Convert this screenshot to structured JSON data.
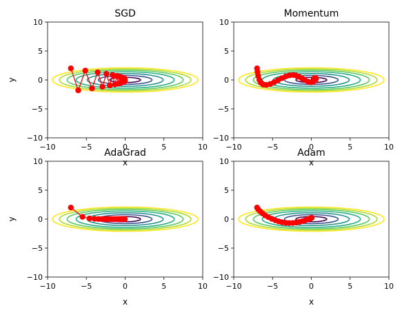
{
  "colors": {
    "path": "#ff0000",
    "center_marker": "#1f77b4",
    "contour_levels": [
      "#440154",
      "#3b528b",
      "#21918c",
      "#27ad81",
      "#5ec962",
      "#aadc32",
      "#fde725"
    ]
  },
  "chart_data": [
    {
      "type": "scatter",
      "title": "SGD",
      "xlabel": "x",
      "ylabel": "y",
      "xlim": [
        -10,
        10
      ],
      "ylim": [
        -10,
        10
      ],
      "xticks": [
        "−10",
        "−5",
        "0",
        "5",
        "10"
      ],
      "yticks": [
        "−10",
        "−5",
        "0",
        "5",
        "10"
      ],
      "contour": {
        "function": "f(x,y) = x^2/20 + y^2",
        "levels": [
          0.2,
          0.6,
          1.2,
          2.0,
          2.8,
          3.6,
          4.4
        ]
      },
      "center": [
        0,
        0
      ],
      "path": [
        [
          -7.0,
          2.0
        ],
        [
          -6.05,
          -1.8
        ],
        [
          -5.14,
          1.62
        ],
        [
          -4.28,
          -1.46
        ],
        [
          -3.54,
          1.31
        ],
        [
          -2.93,
          -1.18
        ],
        [
          -2.42,
          1.06
        ],
        [
          -1.98,
          -0.96
        ],
        [
          -1.62,
          0.86
        ],
        [
          -1.32,
          -0.77
        ],
        [
          -1.07,
          0.7
        ],
        [
          -0.87,
          -0.63
        ],
        [
          -0.7,
          0.56
        ],
        [
          -0.56,
          -0.51
        ],
        [
          -0.45,
          0.46
        ],
        [
          -0.36,
          -0.41
        ],
        [
          -0.29,
          0.37
        ],
        [
          -0.23,
          -0.33
        ],
        [
          -0.18,
          0.3
        ],
        [
          -0.14,
          -0.27
        ],
        [
          -0.11,
          0.24
        ],
        [
          -0.08,
          -0.22
        ],
        [
          -0.06,
          0.2
        ],
        [
          -0.04,
          -0.18
        ]
      ]
    },
    {
      "type": "scatter",
      "title": "Momentum",
      "xlabel": "x",
      "ylabel": "",
      "xlim": [
        -10,
        10
      ],
      "ylim": [
        -10,
        10
      ],
      "xticks": [
        "−10",
        "−5",
        "0",
        "5",
        "10"
      ],
      "yticks": [
        "−10",
        "−5",
        "0",
        "5",
        "10"
      ],
      "contour": {
        "function": "f(x,y) = x^2/20 + y^2",
        "levels": [
          0.2,
          0.6,
          1.2,
          2.0,
          2.8,
          3.6,
          4.4
        ]
      },
      "center": [
        0,
        0
      ],
      "path": [
        [
          -7.0,
          2.0
        ],
        [
          -6.95,
          1.4
        ],
        [
          -6.85,
          0.7
        ],
        [
          -6.7,
          0.0
        ],
        [
          -6.5,
          -0.5
        ],
        [
          -6.2,
          -0.8
        ],
        [
          -5.8,
          -0.85
        ],
        [
          -5.3,
          -0.7
        ],
        [
          -4.8,
          -0.4
        ],
        [
          -4.3,
          -0.05
        ],
        [
          -3.8,
          0.3
        ],
        [
          -3.3,
          0.6
        ],
        [
          -2.8,
          0.8
        ],
        [
          -2.35,
          0.85
        ],
        [
          -1.95,
          0.75
        ],
        [
          -1.6,
          0.55
        ],
        [
          -1.2,
          0.25
        ],
        [
          -0.8,
          -0.05
        ],
        [
          -0.4,
          -0.3
        ],
        [
          -0.05,
          -0.4
        ],
        [
          0.25,
          -0.3
        ],
        [
          0.5,
          -0.05
        ],
        [
          0.6,
          0.2
        ],
        [
          0.55,
          0.35
        ],
        [
          0.4,
          0.3
        ]
      ]
    },
    {
      "type": "scatter",
      "title": "AdaGrad",
      "xlabel": "x",
      "ylabel": "y",
      "xlim": [
        -10,
        10
      ],
      "ylim": [
        -10,
        10
      ],
      "xticks": [
        "−10",
        "−5",
        "0",
        "5",
        "10"
      ],
      "yticks": [
        "−10",
        "−5",
        "0",
        "5",
        "10"
      ],
      "contour": {
        "function": "f(x,y) = x^2/20 + y^2",
        "levels": [
          0.2,
          0.6,
          1.2,
          2.0,
          2.8,
          3.6,
          4.4
        ]
      },
      "center": [
        0,
        0
      ],
      "path": [
        [
          -7.0,
          2.0
        ],
        [
          -5.5,
          0.4
        ],
        [
          -4.6,
          0.13
        ],
        [
          -3.95,
          0.05
        ],
        [
          -3.45,
          0.02
        ],
        [
          -3.05,
          0.01
        ],
        [
          -2.7,
          0.0
        ],
        [
          -2.4,
          0.0
        ],
        [
          -2.1,
          0.0
        ],
        [
          -1.85,
          0.0
        ],
        [
          -1.6,
          0.0
        ],
        [
          -1.38,
          0.0
        ],
        [
          -1.18,
          0.0
        ],
        [
          -1.0,
          0.0
        ],
        [
          -0.83,
          0.0
        ],
        [
          -0.68,
          0.0
        ],
        [
          -0.55,
          0.0
        ],
        [
          -0.43,
          0.0
        ],
        [
          -0.32,
          0.0
        ],
        [
          -0.22,
          0.0
        ],
        [
          -0.13,
          0.0
        ],
        [
          -0.05,
          0.0
        ]
      ]
    },
    {
      "type": "scatter",
      "title": "Adam",
      "xlabel": "x",
      "ylabel": "",
      "xlim": [
        -10,
        10
      ],
      "ylim": [
        -10,
        10
      ],
      "xticks": [
        "−10",
        "−5",
        "0",
        "5",
        "10"
      ],
      "yticks": [
        "−10",
        "−5",
        "0",
        "5",
        "10"
      ],
      "contour": {
        "function": "f(x,y) = x^2/20 + y^2",
        "levels": [
          0.2,
          0.6,
          1.2,
          2.0,
          2.8,
          3.6,
          4.4
        ]
      },
      "center": [
        0,
        0
      ],
      "path": [
        [
          -7.0,
          2.0
        ],
        [
          -6.85,
          1.7
        ],
        [
          -6.6,
          1.35
        ],
        [
          -6.3,
          1.0
        ],
        [
          -5.95,
          0.65
        ],
        [
          -5.55,
          0.35
        ],
        [
          -5.1,
          0.05
        ],
        [
          -4.65,
          -0.2
        ],
        [
          -4.2,
          -0.4
        ],
        [
          -3.75,
          -0.55
        ],
        [
          -3.3,
          -0.65
        ],
        [
          -2.85,
          -0.68
        ],
        [
          -2.4,
          -0.66
        ],
        [
          -1.95,
          -0.58
        ],
        [
          -1.55,
          -0.48
        ],
        [
          -1.15,
          -0.35
        ],
        [
          -0.8,
          -0.2
        ],
        [
          -0.5,
          -0.05
        ],
        [
          -0.25,
          0.08
        ],
        [
          -0.05,
          0.18
        ],
        [
          0.05,
          0.22
        ]
      ]
    }
  ]
}
